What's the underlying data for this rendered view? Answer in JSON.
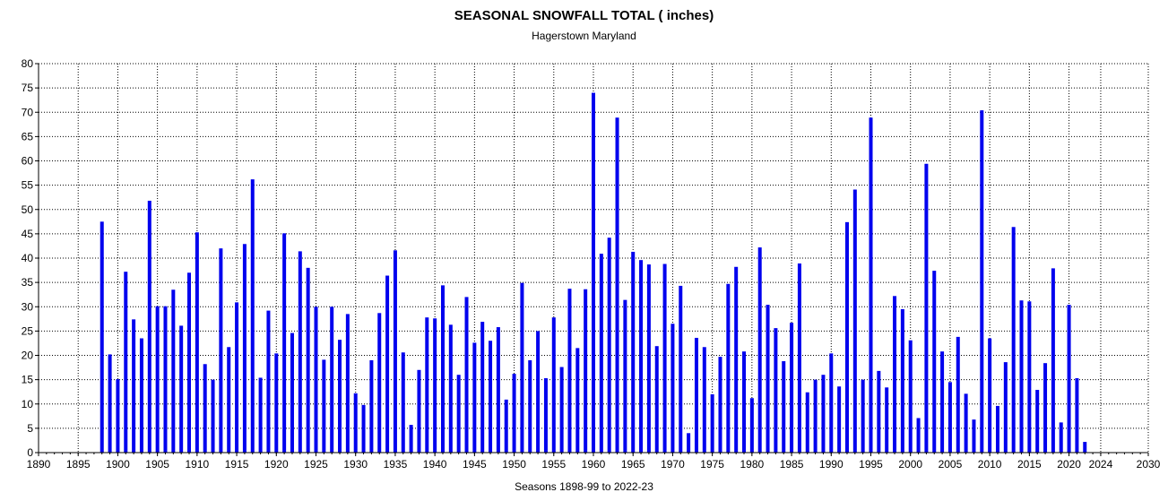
{
  "chart_data": {
    "type": "bar",
    "title": "SEASONAL SNOWFALL TOTAL ( inches)",
    "subtitle": "Hagerstown Maryland",
    "xlabel": "Seasons 1898-99 to 2022-23",
    "ylabel": "",
    "xlim": [
      1890,
      2030
    ],
    "ylim": [
      0,
      80
    ],
    "xticks": [
      1890,
      1895,
      1900,
      1905,
      1910,
      1915,
      1920,
      1925,
      1930,
      1935,
      1940,
      1945,
      1950,
      1955,
      1960,
      1965,
      1970,
      1975,
      1980,
      1985,
      1990,
      1995,
      2000,
      2005,
      2010,
      2015,
      2020,
      2024,
      2030
    ],
    "yticks": [
      0,
      5,
      10,
      15,
      20,
      25,
      30,
      35,
      40,
      45,
      50,
      55,
      60,
      65,
      70,
      75,
      80
    ],
    "grid": true,
    "bar_color": "#0000ee",
    "x": [
      1898,
      1899,
      1900,
      1901,
      1902,
      1903,
      1904,
      1905,
      1906,
      1907,
      1908,
      1909,
      1910,
      1911,
      1912,
      1913,
      1914,
      1915,
      1916,
      1917,
      1918,
      1919,
      1920,
      1921,
      1922,
      1923,
      1924,
      1925,
      1926,
      1927,
      1928,
      1929,
      1930,
      1931,
      1932,
      1933,
      1934,
      1935,
      1936,
      1937,
      1938,
      1939,
      1940,
      1941,
      1942,
      1943,
      1944,
      1945,
      1946,
      1947,
      1948,
      1949,
      1950,
      1951,
      1952,
      1953,
      1954,
      1955,
      1956,
      1957,
      1958,
      1959,
      1960,
      1961,
      1962,
      1963,
      1964,
      1965,
      1966,
      1967,
      1968,
      1969,
      1970,
      1971,
      1972,
      1973,
      1974,
      1975,
      1976,
      1977,
      1978,
      1979,
      1980,
      1981,
      1982,
      1983,
      1984,
      1985,
      1986,
      1987,
      1988,
      1989,
      1990,
      1991,
      1992,
      1993,
      1994,
      1995,
      1996,
      1997,
      1998,
      1999,
      2000,
      2001,
      2002,
      2003,
      2004,
      2005,
      2006,
      2007,
      2008,
      2009,
      2010,
      2011,
      2012,
      2013,
      2014,
      2015,
      2016,
      2017,
      2018,
      2019,
      2020,
      2021,
      2022
    ],
    "values": [
      47.5,
      20.2,
      15.1,
      37.2,
      27.4,
      23.5,
      51.8,
      30.1,
      30.1,
      33.5,
      26.1,
      37.0,
      45.3,
      18.2,
      15.0,
      42.0,
      21.7,
      30.9,
      42.9,
      56.2,
      15.4,
      29.2,
      20.4,
      45.1,
      24.6,
      41.4,
      38.0,
      30.0,
      19.1,
      30.0,
      23.2,
      28.5,
      12.2,
      9.8,
      19.0,
      28.7,
      36.4,
      41.6,
      20.6,
      5.7,
      17.0,
      27.8,
      27.6,
      34.4,
      26.3,
      16.0,
      32.0,
      22.6,
      26.9,
      23.0,
      25.8,
      10.9,
      16.2,
      34.9,
      19.0,
      25.0,
      15.3,
      27.8,
      17.6,
      33.7,
      21.5,
      33.6,
      74.0,
      40.9,
      44.2,
      68.9,
      31.4,
      41.3,
      39.6,
      38.7,
      21.9,
      38.8,
      26.5,
      34.3,
      4.0,
      23.6,
      21.7,
      12.0,
      19.7,
      34.7,
      38.2,
      20.8,
      11.2,
      42.2,
      30.4,
      25.6,
      18.8,
      26.7,
      38.9,
      12.4,
      15.0,
      16.0,
      20.4,
      13.6,
      47.4,
      54.1,
      15.0,
      68.9,
      16.8,
      13.4,
      32.2,
      29.5,
      23.1,
      7.1,
      59.4,
      37.4,
      20.8,
      14.5,
      23.8,
      12.1,
      6.8,
      70.4,
      23.5,
      9.6,
      18.6,
      46.4,
      31.3,
      31.1,
      12.9,
      18.4,
      37.9,
      6.2,
      30.4,
      15.3,
      2.2
    ]
  }
}
